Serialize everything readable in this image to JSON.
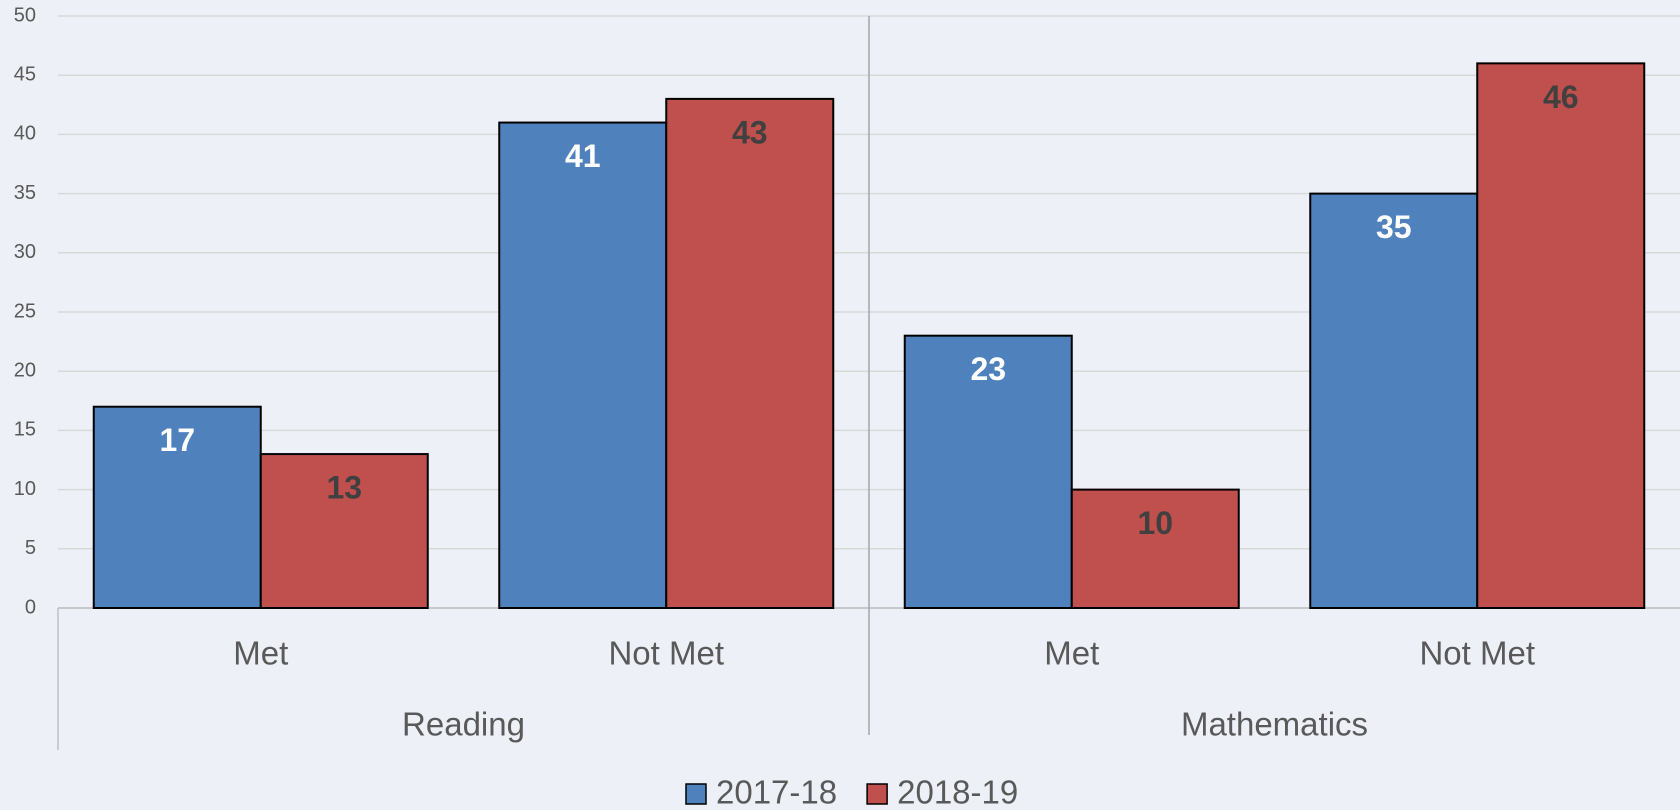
{
  "chart_data": {
    "type": "bar",
    "categories": [
      "Met",
      "Not Met",
      "Met",
      "Not Met"
    ],
    "groups": [
      {
        "name": "Reading",
        "span": 2
      },
      {
        "name": "Mathematics",
        "span": 2
      }
    ],
    "series": [
      {
        "name": "2017-18",
        "color": "#4f81bd",
        "label_color": "#ffffff",
        "values": [
          17,
          41,
          23,
          35
        ]
      },
      {
        "name": "2018-19",
        "color": "#c0504d",
        "label_color": "#404040",
        "values": [
          13,
          43,
          10,
          46
        ]
      }
    ],
    "ylim": [
      0,
      50
    ],
    "yticks": [
      0,
      5,
      10,
      15,
      20,
      25,
      30,
      35,
      40,
      45,
      50
    ],
    "grid": true,
    "legend": "bottom"
  }
}
